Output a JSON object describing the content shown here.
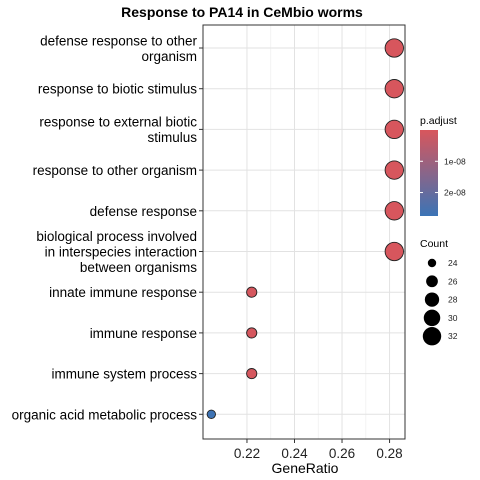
{
  "chart_data": {
    "type": "scatter",
    "title": "Response to PA14 in CeMbio worms",
    "xlabel": "GeneRatio",
    "ylabel": "",
    "xlim": [
      0.2015,
      0.2865
    ],
    "x_ticks": [
      0.22,
      0.24,
      0.26,
      0.28
    ],
    "x_tick_labels": [
      "0.22",
      "0.24",
      "0.26",
      "0.28"
    ],
    "grid": true,
    "legend_position": "right",
    "categories": [
      [
        "defense response to other",
        "organism"
      ],
      [
        "response to biotic stimulus"
      ],
      [
        "response to external biotic",
        "stimulus"
      ],
      [
        "response to other organism"
      ],
      [
        "defense response"
      ],
      [
        "biological process involved",
        "in interspecies interaction",
        "between organisms"
      ],
      [
        "innate immune response"
      ],
      [
        "immune response"
      ],
      [
        "immune system process"
      ],
      [
        "organic acid metabolic process"
      ]
    ],
    "points": [
      {
        "gene_ratio": 0.282,
        "count": 32,
        "p_adjust": 2e-10
      },
      {
        "gene_ratio": 0.282,
        "count": 32,
        "p_adjust": 2e-10
      },
      {
        "gene_ratio": 0.282,
        "count": 32,
        "p_adjust": 2e-10
      },
      {
        "gene_ratio": 0.282,
        "count": 32,
        "p_adjust": 2e-10
      },
      {
        "gene_ratio": 0.282,
        "count": 32,
        "p_adjust": 2e-10
      },
      {
        "gene_ratio": 0.282,
        "count": 32,
        "p_adjust": 2e-10
      },
      {
        "gene_ratio": 0.222,
        "count": 25,
        "p_adjust": 5e-10
      },
      {
        "gene_ratio": 0.222,
        "count": 25,
        "p_adjust": 5e-10
      },
      {
        "gene_ratio": 0.222,
        "count": 25,
        "p_adjust": 5e-10
      },
      {
        "gene_ratio": 0.205,
        "count": 23,
        "p_adjust": 2.7e-08
      }
    ],
    "color_legend": {
      "title": "p.adjust",
      "range": [
        0,
        2.75e-08
      ],
      "low_color": "#d8565c",
      "high_color": "#3b74b6",
      "ticks": [
        1e-08,
        2e-08
      ],
      "tick_labels": [
        "1e-08",
        "2e-08"
      ]
    },
    "size_legend": {
      "title": "Count",
      "values": [
        24,
        26,
        28,
        30,
        32
      ],
      "labels": [
        "24",
        "26",
        "28",
        "30",
        "32"
      ]
    }
  }
}
